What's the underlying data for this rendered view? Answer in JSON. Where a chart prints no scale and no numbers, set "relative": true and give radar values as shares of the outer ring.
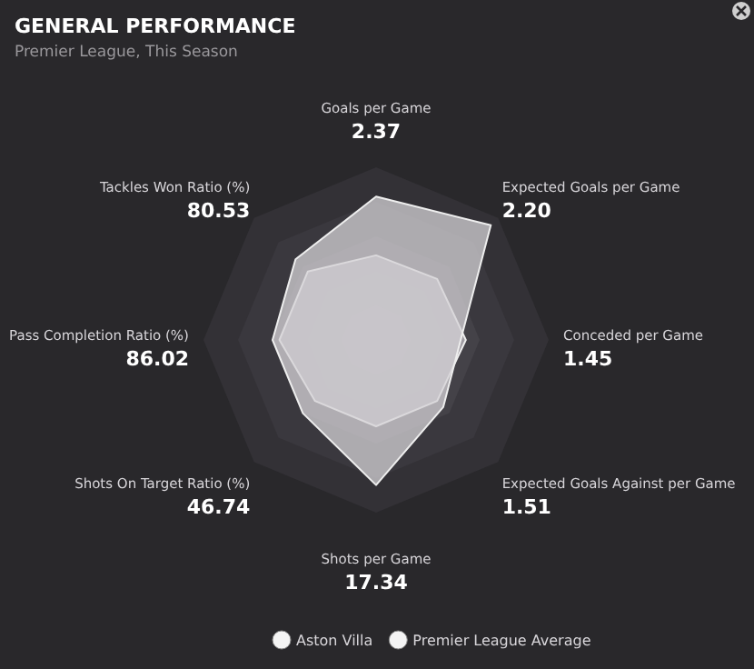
{
  "chart_data": {
    "type": "radar",
    "title": "GENERAL PERFORMANCE",
    "subtitle": "Premier League, This Season",
    "relative": true,
    "legend": "bottom",
    "annotations": [
      "2.37",
      "2.20",
      "1.45",
      "1.51",
      "17.34",
      "46.74",
      "86.02",
      "80.53"
    ],
    "categories": [
      "Goals per Game",
      "Expected Goals per Game",
      "Conceded per Game",
      "Expected Goals Against per Game",
      "Shots per Game",
      "Shots On Target Ratio (%)",
      "Pass Completion Ratio (%)",
      "Tackles Won Ratio (%)"
    ],
    "series": [
      {
        "name": "Aston Villa",
        "color": "#d4d1d5",
        "values": [
          0.83,
          0.94,
          0.49,
          0.55,
          0.84,
          0.6,
          0.6,
          0.66
        ]
      },
      {
        "name": "Premier League Average",
        "color": "#bdb9c0",
        "values": [
          0.49,
          0.5,
          0.52,
          0.5,
          0.5,
          0.5,
          0.56,
          0.56
        ]
      }
    ]
  }
}
